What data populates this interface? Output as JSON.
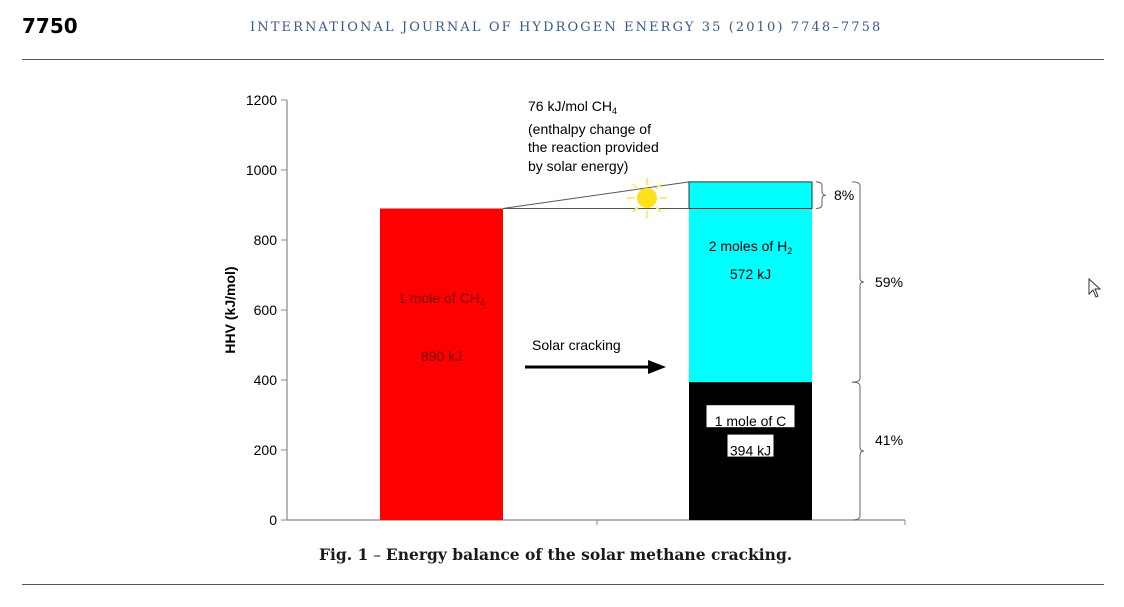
{
  "header": {
    "page_number": "7750",
    "journal_line": "INTERNATIONAL JOURNAL OF HYDROGEN ENERGY 35 (2010) 7748–7758"
  },
  "caption": {
    "label": "Fig. 1",
    "dash": " – ",
    "text": "Energy balance of the solar methane cracking."
  },
  "chart_data": {
    "type": "bar",
    "ylabel": "HHV (kJ/mol)",
    "ylim": [
      0,
      1200
    ],
    "yticks": [
      0,
      200,
      400,
      600,
      800,
      1000,
      1200
    ],
    "stacks": [
      {
        "segments": [
          {
            "value": 890,
            "color": "#ff0000",
            "label_line1": "1 mole of CH",
            "label_sub": "4",
            "label_line2": "890 kJ"
          }
        ]
      },
      {
        "segments": [
          {
            "value": 394,
            "color": "#000000",
            "label_line1": "1 mole of C",
            "label_line2": "394 kJ"
          },
          {
            "value": 496,
            "color": "#00ffff",
            "label_line1": "2 moles of H",
            "label_sub": "2",
            "label_line2": "572 kJ"
          },
          {
            "value": 76,
            "color": "#00ffff"
          }
        ]
      }
    ],
    "annotations": {
      "solar_line1": "76 kJ/mol CH",
      "solar_line1_sub": "4",
      "solar_line2": "(enthalpy change of",
      "solar_line3": "the reaction provided",
      "solar_line4": "by solar energy)",
      "arrow_label": "Solar cracking",
      "pct_top": "8%",
      "pct_mid": "59%",
      "pct_bottom": "41%"
    },
    "colors": {
      "sun": "#ffe11a",
      "sun_rays": "#ffe87a"
    }
  }
}
